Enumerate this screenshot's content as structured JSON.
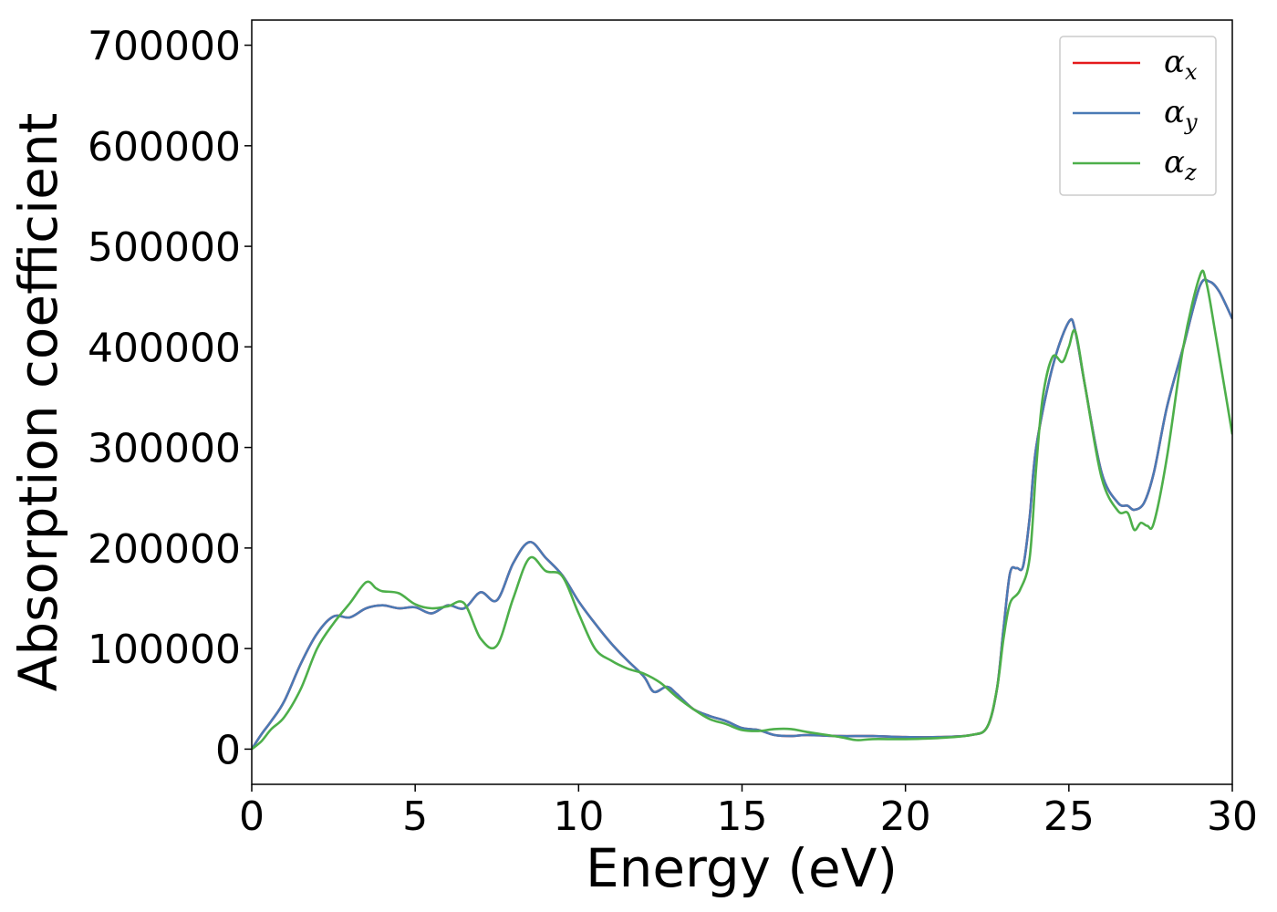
{
  "chart_data": {
    "type": "line",
    "xlabel": "Energy (eV)",
    "ylabel": "Absorption coefficient",
    "xlim": [
      0,
      30
    ],
    "ylim": [
      -35000,
      725000
    ],
    "xticks": [
      0,
      5,
      10,
      15,
      20,
      25,
      30
    ],
    "yticks": [
      0,
      100000,
      200000,
      300000,
      400000,
      500000,
      600000,
      700000
    ],
    "xtick_labels": [
      "0",
      "5",
      "10",
      "15",
      "20",
      "25",
      "30"
    ],
    "ytick_labels": [
      "0",
      "100000",
      "200000",
      "300000",
      "400000",
      "500000",
      "600000",
      "700000"
    ],
    "grid": false,
    "legend_position": "top-right",
    "series": [
      {
        "name": "α_x",
        "symbol": "α",
        "subscript": "x",
        "color": "#e41a1c",
        "x": [
          0,
          0.3,
          0.6,
          1.0,
          1.5,
          2.0,
          2.5,
          3.0,
          3.5,
          4.0,
          4.5,
          5.0,
          5.5,
          6.0,
          6.5,
          7.0,
          7.5,
          8.0,
          8.5,
          9.0,
          9.5,
          10.0,
          10.5,
          11.0,
          11.5,
          12.0,
          12.3,
          12.7,
          13.0,
          13.5,
          14.0,
          14.5,
          15.0,
          15.5,
          16.0,
          16.5,
          17.0,
          18.0,
          19.0,
          20.0,
          21.0,
          22.0,
          22.5,
          22.8,
          23.0,
          23.2,
          23.4,
          23.6,
          23.8,
          24.0,
          24.5,
          25.0,
          25.2,
          25.5,
          26.0,
          26.5,
          26.8,
          27.0,
          27.3,
          27.6,
          28.0,
          28.5,
          29.0,
          29.3,
          29.6,
          30.0
        ],
        "y": [
          0,
          15000,
          28000,
          48000,
          85000,
          115000,
          132000,
          131000,
          140000,
          143000,
          140000,
          141000,
          135000,
          143000,
          140000,
          156000,
          148000,
          185000,
          206000,
          190000,
          173000,
          147000,
          125000,
          105000,
          88000,
          72000,
          57000,
          62000,
          55000,
          40000,
          33000,
          28000,
          21000,
          19000,
          14000,
          13000,
          14000,
          13000,
          13000,
          12000,
          12000,
          14000,
          22000,
          60000,
          120000,
          175000,
          180000,
          182000,
          230000,
          300000,
          380000,
          425000,
          415000,
          360000,
          275000,
          245000,
          242000,
          238000,
          245000,
          275000,
          340000,
          400000,
          460000,
          465000,
          455000,
          428000
        ]
      },
      {
        "name": "α_y",
        "symbol": "α",
        "subscript": "y",
        "color": "#4a7ab5",
        "x": [
          0,
          0.3,
          0.6,
          1.0,
          1.5,
          2.0,
          2.5,
          3.0,
          3.5,
          4.0,
          4.5,
          5.0,
          5.5,
          6.0,
          6.5,
          7.0,
          7.5,
          8.0,
          8.5,
          9.0,
          9.5,
          10.0,
          10.5,
          11.0,
          11.5,
          12.0,
          12.3,
          12.7,
          13.0,
          13.5,
          14.0,
          14.5,
          15.0,
          15.5,
          16.0,
          16.5,
          17.0,
          18.0,
          19.0,
          20.0,
          21.0,
          22.0,
          22.5,
          22.8,
          23.0,
          23.2,
          23.4,
          23.6,
          23.8,
          24.0,
          24.5,
          25.0,
          25.2,
          25.5,
          26.0,
          26.5,
          26.8,
          27.0,
          27.3,
          27.6,
          28.0,
          28.5,
          29.0,
          29.3,
          29.6,
          30.0
        ],
        "y": [
          0,
          15000,
          28000,
          48000,
          85000,
          115000,
          132000,
          131000,
          140000,
          143000,
          140000,
          141000,
          135000,
          143000,
          140000,
          156000,
          148000,
          185000,
          206000,
          190000,
          173000,
          147000,
          125000,
          105000,
          88000,
          72000,
          57000,
          62000,
          55000,
          40000,
          33000,
          28000,
          21000,
          19000,
          14000,
          13000,
          14000,
          13000,
          13000,
          12000,
          12000,
          14000,
          22000,
          60000,
          120000,
          175000,
          180000,
          182000,
          230000,
          300000,
          380000,
          425000,
          415000,
          360000,
          275000,
          245000,
          242000,
          238000,
          245000,
          275000,
          340000,
          400000,
          460000,
          465000,
          455000,
          428000
        ]
      },
      {
        "name": "α_z",
        "symbol": "α",
        "subscript": "z",
        "color": "#4daf4a",
        "x": [
          0,
          0.3,
          0.6,
          1.0,
          1.5,
          2.0,
          2.5,
          3.0,
          3.5,
          3.8,
          4.0,
          4.5,
          5.0,
          5.5,
          6.0,
          6.5,
          7.0,
          7.5,
          8.0,
          8.5,
          9.0,
          9.5,
          10.0,
          10.5,
          11.0,
          11.5,
          12.0,
          12.5,
          13.0,
          13.5,
          14.0,
          14.5,
          15.0,
          15.5,
          16.0,
          16.5,
          17.0,
          18.0,
          18.5,
          19.0,
          20.0,
          21.0,
          22.0,
          22.5,
          22.8,
          23.0,
          23.2,
          23.5,
          23.8,
          24.0,
          24.2,
          24.5,
          24.8,
          25.0,
          25.2,
          25.5,
          26.0,
          26.5,
          26.8,
          27.0,
          27.2,
          27.4,
          27.6,
          28.0,
          28.5,
          29.0,
          29.2,
          29.5,
          30.0
        ],
        "y": [
          0,
          8000,
          20000,
          32000,
          60000,
          100000,
          125000,
          145000,
          166000,
          160000,
          157000,
          155000,
          144000,
          140000,
          142000,
          145000,
          110000,
          103000,
          150000,
          190000,
          177000,
          172000,
          135000,
          100000,
          88000,
          80000,
          75000,
          66000,
          52000,
          40000,
          30000,
          25000,
          19000,
          18000,
          20000,
          20000,
          17000,
          12000,
          9000,
          10000,
          10000,
          11000,
          14000,
          22000,
          60000,
          110000,
          145000,
          158000,
          190000,
          280000,
          350000,
          390000,
          385000,
          400000,
          415000,
          360000,
          270000,
          237000,
          235000,
          218000,
          225000,
          222000,
          225000,
          290000,
          400000,
          470000,
          465000,
          410000,
          313000
        ]
      }
    ]
  }
}
